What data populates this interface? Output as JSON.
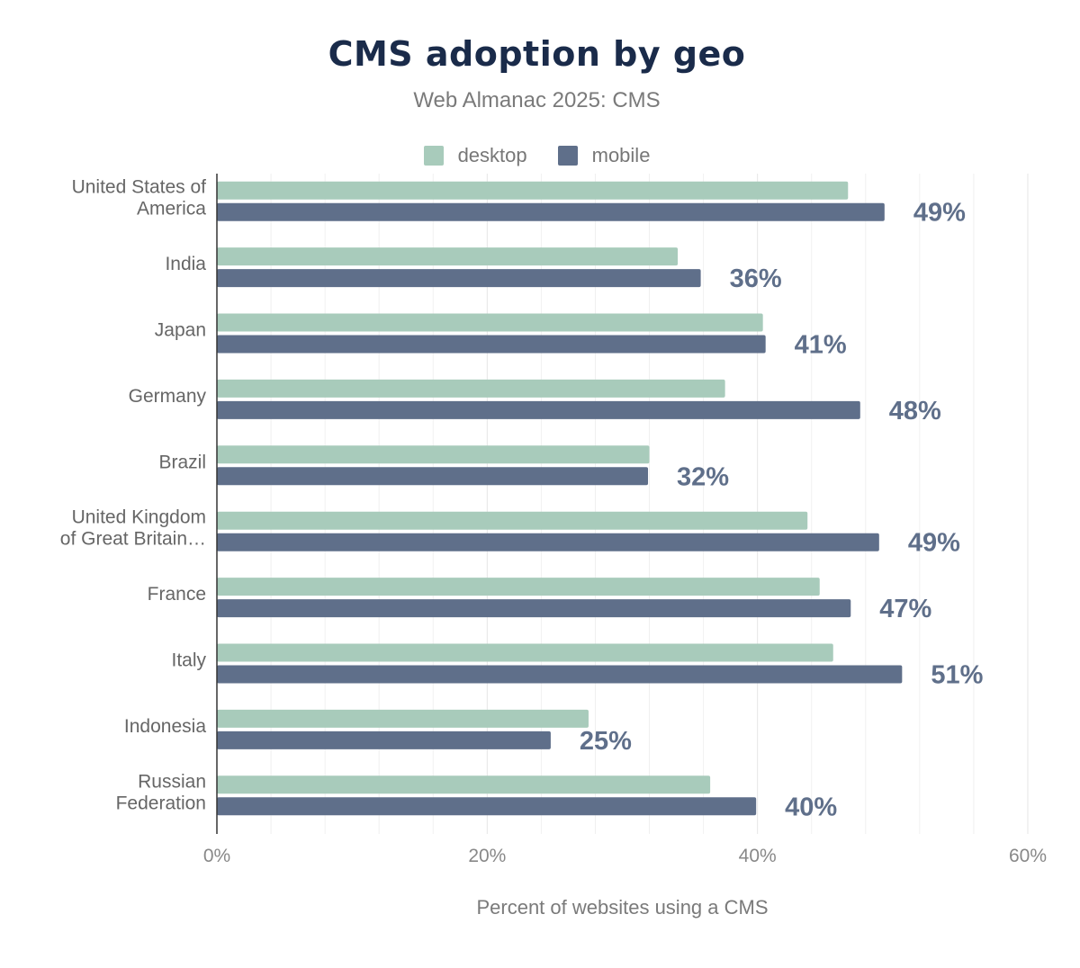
{
  "chart_data": {
    "type": "bar",
    "orientation": "horizontal",
    "title": "CMS adoption by geo",
    "subtitle": "Web Almanac 2025: CMS",
    "xlabel": "Percent of websites using a CMS",
    "ylabel": "",
    "xlim": [
      0,
      60
    ],
    "xticks": [
      "0%",
      "20%",
      "40%",
      "60%"
    ],
    "grid": true,
    "legend_position": "top",
    "categories": [
      [
        "United States of",
        "America"
      ],
      [
        "India"
      ],
      [
        "Japan"
      ],
      [
        "Germany"
      ],
      [
        "Brazil"
      ],
      [
        "United Kingdom",
        "of Great Britain…"
      ],
      [
        "France"
      ],
      [
        "Italy"
      ],
      [
        "Indonesia"
      ],
      [
        "Russian",
        "Federation"
      ]
    ],
    "series": [
      {
        "name": "desktop",
        "color": "#a8cbbb",
        "values": [
          46.7,
          34.1,
          40.4,
          37.6,
          32.0,
          43.7,
          44.6,
          45.6,
          27.5,
          36.5
        ]
      },
      {
        "name": "mobile",
        "color": "#5f6f8a",
        "values": [
          49.4,
          35.8,
          40.6,
          47.6,
          31.9,
          49.0,
          46.9,
          50.7,
          24.7,
          39.9
        ]
      }
    ],
    "data_labels": [
      "49%",
      "36%",
      "41%",
      "48%",
      "32%",
      "49%",
      "47%",
      "51%",
      "25%",
      "40%"
    ]
  }
}
